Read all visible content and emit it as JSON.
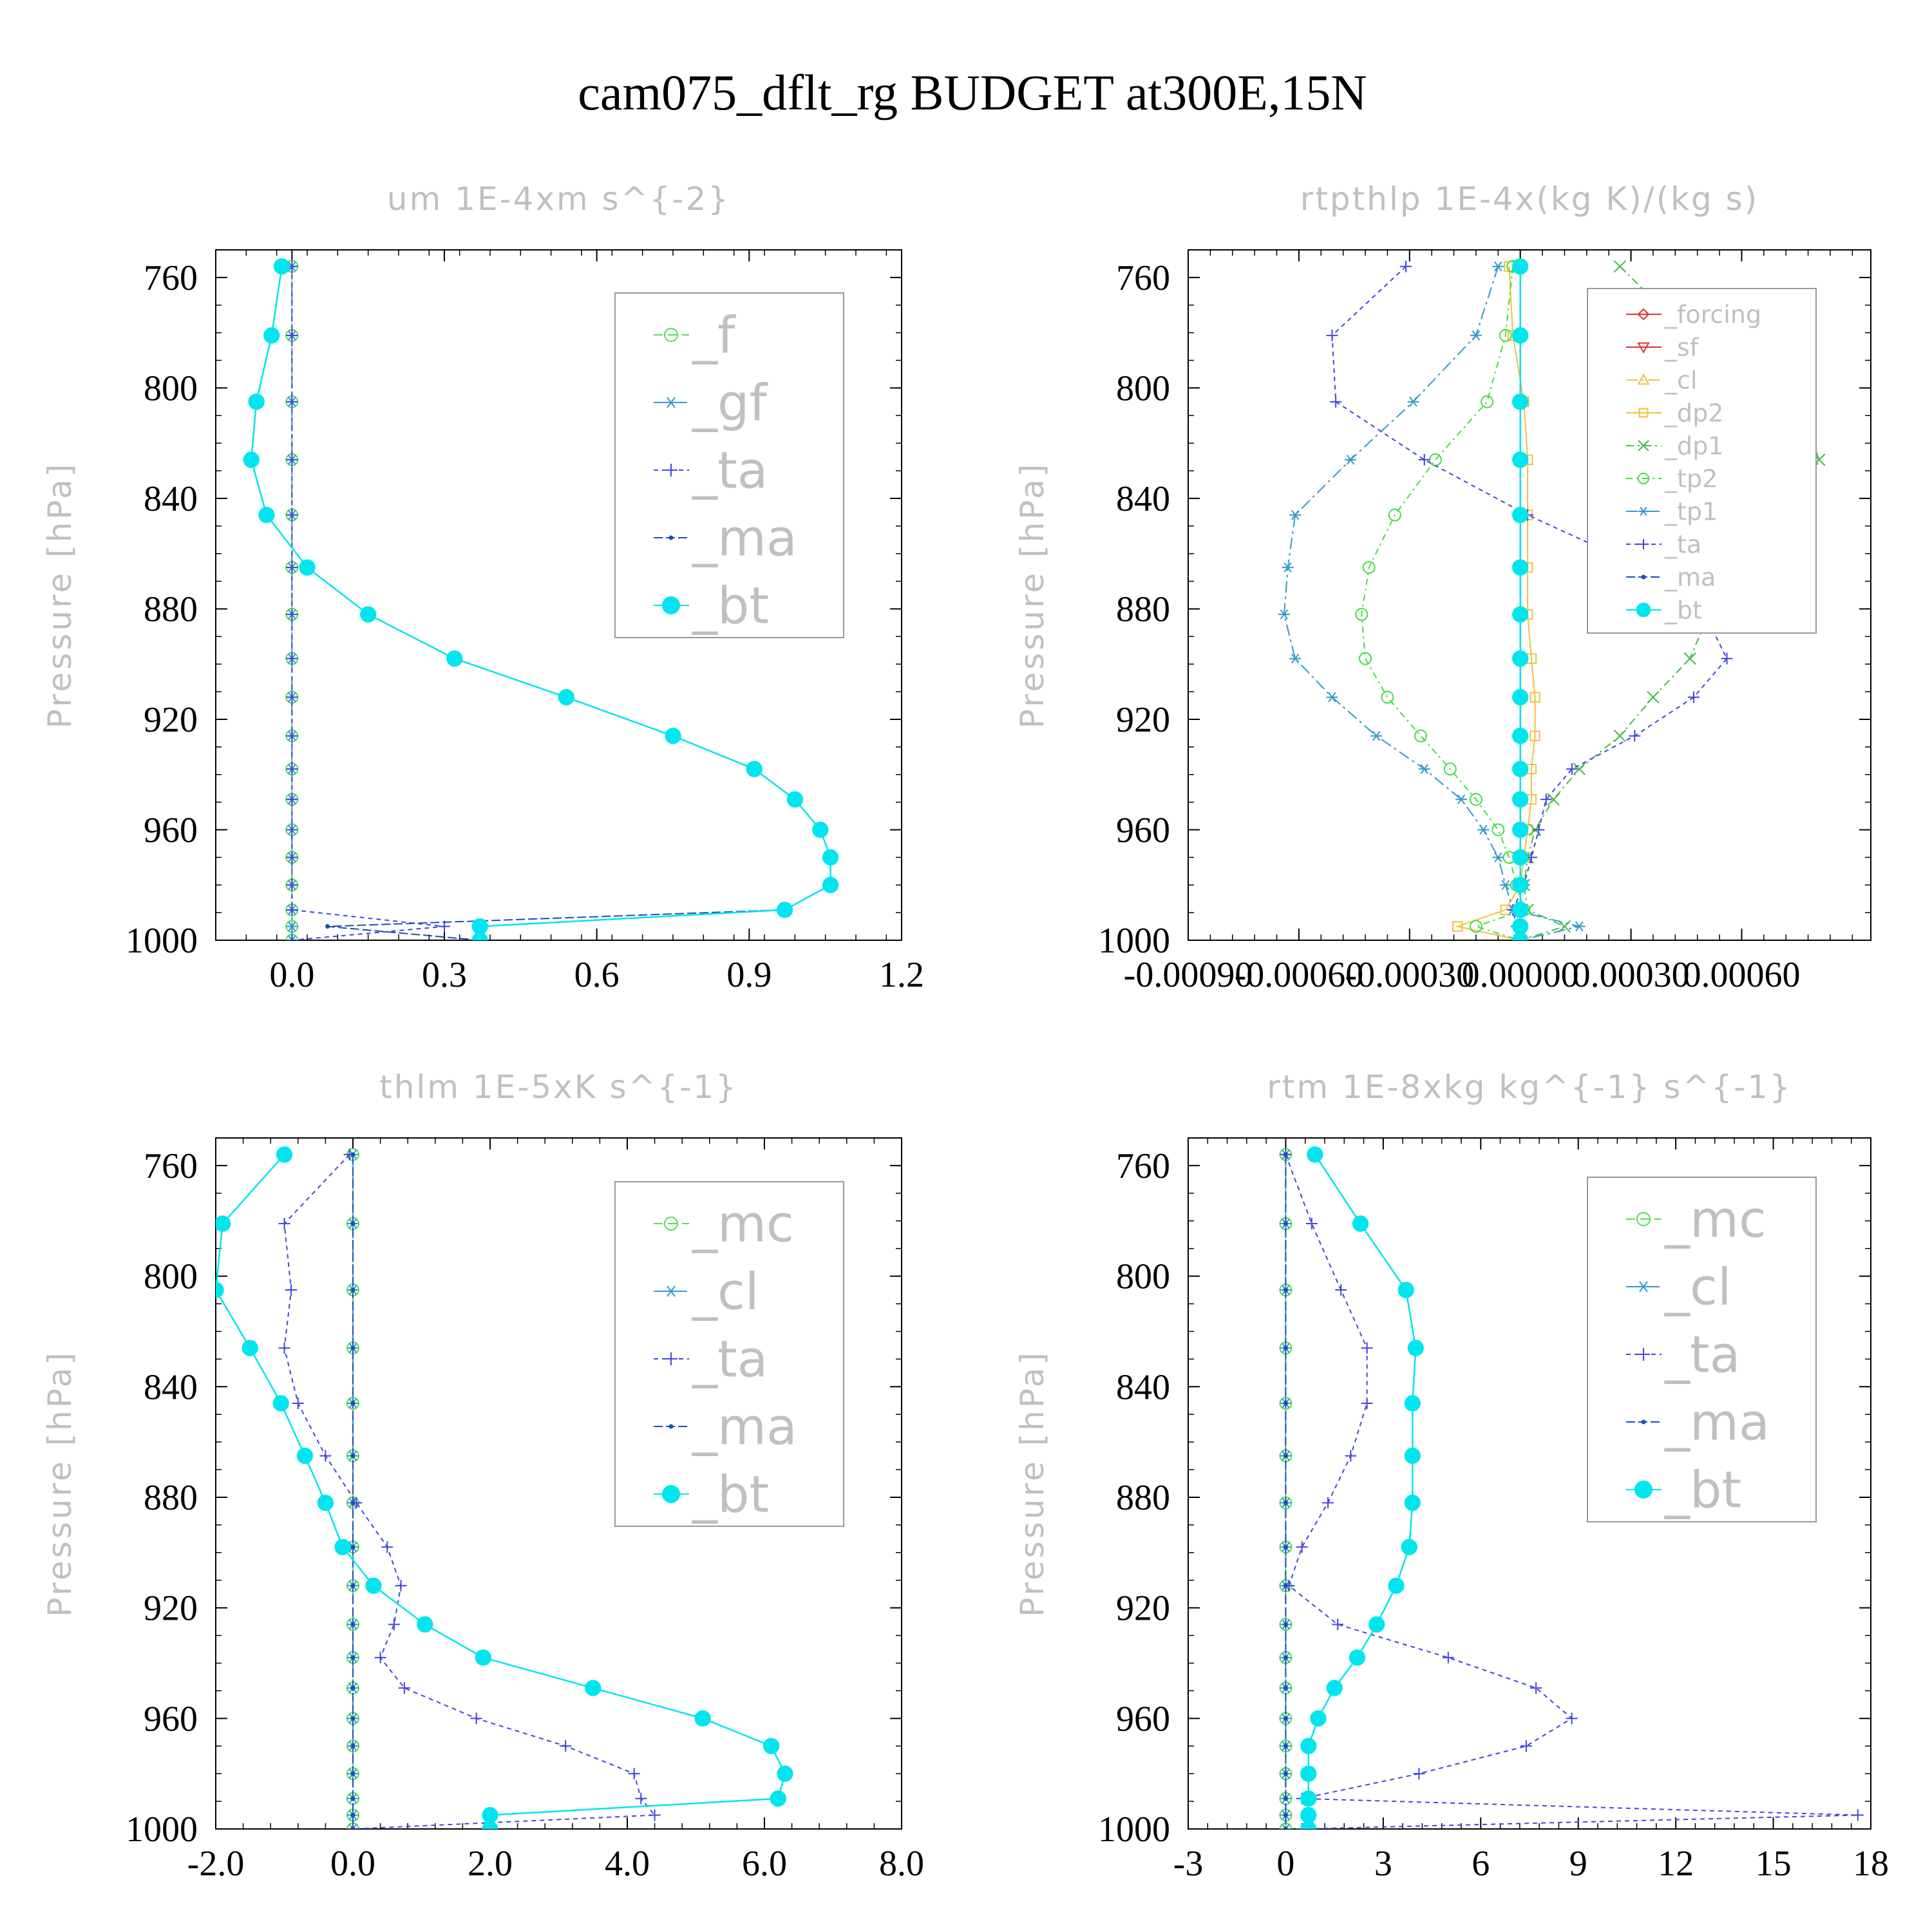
{
  "title": "cam075_dflt_rg  BUDGET at300E,15N",
  "chart_data": [
    {
      "type": "line",
      "title": "um   1E-4xm s^{-2}",
      "ylabel": "Pressure [hPa]",
      "xlim": [
        -0.15,
        1.2
      ],
      "ylim": [
        750,
        1000
      ],
      "y_inverted": true,
      "xticks": [
        "0.0",
        "0.3",
        "0.6",
        "0.9",
        "1.2"
      ],
      "yticks": [
        "760",
        "800",
        "840",
        "880",
        "920",
        "960",
        "1000"
      ],
      "legend_position": "top-right",
      "y": [
        756,
        781,
        805,
        826,
        846,
        865,
        882,
        898,
        912,
        926,
        938,
        949,
        960,
        970,
        980,
        989,
        995,
        1000
      ],
      "series": [
        {
          "name": "_f",
          "color": "#55dd55",
          "marker": "circle",
          "values": [
            0,
            0,
            0,
            0,
            0,
            0,
            0,
            0,
            0,
            0,
            0,
            0,
            0,
            0,
            0,
            0,
            0,
            0
          ]
        },
        {
          "name": "_gf",
          "color": "#3399cc",
          "marker": "asterisk",
          "values": [
            0,
            0,
            0,
            0,
            0,
            0,
            0,
            0,
            0,
            0,
            0,
            0,
            0,
            0,
            0,
            0,
            0,
            0
          ]
        },
        {
          "name": "_ta",
          "color": "#4444dd",
          "marker": "plus",
          "values": [
            0,
            0,
            0,
            0,
            0,
            0,
            0,
            0,
            0,
            0,
            0,
            0,
            0,
            0,
            0,
            0,
            0.3,
            0
          ]
        },
        {
          "name": "_ma",
          "color": "#1a4fb3",
          "marker": "dot",
          "values": [
            -0.02,
            -0.04,
            -0.07,
            -0.08,
            -0.05,
            0.03,
            0.15,
            0.32,
            0.54,
            0.75,
            0.91,
            0.99,
            1.04,
            1.06,
            1.06,
            0.97,
            0.07,
            0.37
          ]
        },
        {
          "name": "_bt",
          "color": "#00e5ee",
          "marker": "filled-circle",
          "values": [
            -0.02,
            -0.04,
            -0.07,
            -0.08,
            -0.05,
            0.03,
            0.15,
            0.32,
            0.54,
            0.75,
            0.91,
            0.99,
            1.04,
            1.06,
            1.06,
            0.97,
            0.37,
            0.37
          ]
        }
      ]
    },
    {
      "type": "line",
      "title": "rtpthlp   1E-4x(kg K)/(kg s)",
      "ylabel": "Pressure [hPa]",
      "xlim": [
        -0.0009,
        0.00095
      ],
      "ylim": [
        750,
        1000
      ],
      "y_inverted": true,
      "xticks": [
        "-0.00090",
        "-0.00060",
        "-0.00030",
        "0.00000",
        "0.00030",
        "0.00060"
      ],
      "yticks": [
        "760",
        "800",
        "840",
        "880",
        "920",
        "960",
        "1000"
      ],
      "legend_position": "top-right",
      "y": [
        756,
        781,
        805,
        826,
        846,
        865,
        882,
        898,
        912,
        926,
        938,
        949,
        960,
        970,
        980,
        989,
        995,
        1000
      ],
      "series": [
        {
          "name": "_forcing",
          "color": "#e03030",
          "marker": "diamond",
          "values": [
            0,
            0,
            0,
            0,
            0,
            0,
            0,
            0,
            0,
            0,
            0,
            0,
            0,
            0,
            0,
            0,
            0,
            0
          ]
        },
        {
          "name": "_sf",
          "color": "#e03030",
          "marker": "triangle-down",
          "values": [
            0,
            0,
            0,
            0,
            0,
            0,
            0,
            0,
            0,
            0,
            0,
            0,
            0,
            0,
            0,
            0,
            0,
            0
          ]
        },
        {
          "name": "_cl",
          "color": "#f0c040",
          "marker": "triangle",
          "values": [
            0,
            0,
            0,
            0,
            0,
            0,
            0,
            0,
            0,
            0,
            0,
            0,
            0,
            0,
            0,
            0,
            0,
            0
          ]
        },
        {
          "name": "_dp2",
          "color": "#f0c040",
          "marker": "square",
          "values": [
            -3e-05,
            -2e-05,
            1e-05,
            2e-05,
            2e-05,
            2e-05,
            2e-05,
            3e-05,
            4e-05,
            4e-05,
            3e-05,
            3e-05,
            2e-05,
            1e-05,
            0,
            -4e-05,
            -0.00017,
            0
          ]
        },
        {
          "name": "_dp1",
          "color": "#44bb44",
          "marker": "x",
          "values": [
            0.00027,
            0.00046,
            0.00075,
            0.00081,
            0.00075,
            0.00062,
            0.00051,
            0.00046,
            0.00036,
            0.00027,
            0.00016,
            9e-05,
            4e-05,
            2e-05,
            1e-05,
            2e-05,
            0.00012,
            0
          ]
        },
        {
          "name": "_tp2",
          "color": "#44dd44",
          "marker": "circle",
          "values": [
            -2e-05,
            -4e-05,
            -9e-05,
            -0.00023,
            -0.00034,
            -0.00041,
            -0.00043,
            -0.00042,
            -0.00036,
            -0.00027,
            -0.00019,
            -0.00012,
            -6e-05,
            -3e-05,
            -1e-05,
            1e-05,
            -0.00012,
            0
          ]
        },
        {
          "name": "_tp1",
          "color": "#3399cc",
          "marker": "asterisk",
          "values": [
            -6e-05,
            -0.00012,
            -0.00029,
            -0.00046,
            -0.00061,
            -0.00063,
            -0.00064,
            -0.00061,
            -0.00051,
            -0.00039,
            -0.00026,
            -0.00016,
            -0.0001,
            -6e-05,
            -4e-05,
            -2e-05,
            0.00016,
            0
          ]
        },
        {
          "name": "_ta",
          "color": "#4444dd",
          "marker": "plus",
          "values": [
            -0.00031,
            -0.00051,
            -0.0005,
            -0.00026,
            2e-05,
            0.00033,
            0.0005,
            0.00056,
            0.00047,
            0.00031,
            0.00014,
            7e-05,
            5e-05,
            3e-05,
            1e-05,
            -2e-05,
            -1e-05,
            0
          ]
        },
        {
          "name": "_ma",
          "color": "#1a4fb3",
          "marker": "dot",
          "values": [
            0,
            0,
            0,
            0,
            0,
            0,
            0,
            0,
            0,
            0,
            0,
            0,
            0,
            0,
            0,
            0,
            0,
            0
          ]
        },
        {
          "name": "_bt",
          "color": "#00e5ee",
          "marker": "filled-circle",
          "values": [
            0,
            0,
            0,
            0,
            0,
            0,
            0,
            0,
            0,
            0,
            0,
            0,
            0,
            0,
            0,
            0,
            0,
            0
          ]
        }
      ]
    },
    {
      "type": "line",
      "title": "thlm   1E-5xK s^{-1}",
      "ylabel": "Pressure [hPa]",
      "xlim": [
        -2.0,
        8.0
      ],
      "ylim": [
        750,
        1000
      ],
      "y_inverted": true,
      "xticks": [
        "-2.0",
        "0.0",
        "2.0",
        "4.0",
        "6.0",
        "8.0"
      ],
      "yticks": [
        "760",
        "800",
        "840",
        "880",
        "920",
        "960",
        "1000"
      ],
      "legend_position": "top-right",
      "y": [
        756,
        781,
        805,
        826,
        846,
        865,
        882,
        898,
        912,
        926,
        938,
        949,
        960,
        970,
        980,
        989,
        995,
        1000
      ],
      "series": [
        {
          "name": "_mc",
          "color": "#55dd55",
          "marker": "circle",
          "values": [
            0,
            0,
            0,
            0,
            0,
            0,
            0,
            0,
            0,
            0,
            0,
            0,
            0,
            0,
            0,
            0,
            0,
            0
          ]
        },
        {
          "name": "_cl",
          "color": "#3399cc",
          "marker": "asterisk",
          "values": [
            0,
            0,
            0,
            0,
            0,
            0,
            0,
            0,
            0,
            0,
            0,
            0,
            0,
            0,
            0,
            0,
            0,
            0
          ]
        },
        {
          "name": "_ta",
          "color": "#4444dd",
          "marker": "plus",
          "values": [
            -0.05,
            -1.0,
            -0.9,
            -1.0,
            -0.8,
            -0.4,
            0.05,
            0.5,
            0.7,
            0.6,
            0.4,
            0.75,
            1.8,
            3.1,
            4.1,
            4.2,
            4.4,
            0
          ]
        },
        {
          "name": "_ma",
          "color": "#1a4fb3",
          "marker": "dot",
          "values": [
            0,
            0,
            0,
            0,
            0,
            0,
            0,
            0,
            0,
            0,
            0,
            0,
            0,
            0,
            0,
            0,
            0,
            0
          ]
        },
        {
          "name": "_bt",
          "color": "#00e5ee",
          "marker": "filled-circle",
          "values": [
            -1.0,
            -1.9,
            -2.0,
            -1.5,
            -1.05,
            -0.7,
            -0.4,
            -0.15,
            0.3,
            1.05,
            1.9,
            3.5,
            5.1,
            6.1,
            6.3,
            6.2,
            2.0,
            2.0
          ]
        }
      ]
    },
    {
      "type": "line",
      "title": "rtm   1E-8xkg kg^{-1} s^{-1}",
      "ylabel": "Pressure [hPa]",
      "xlim": [
        -3,
        18
      ],
      "ylim": [
        750,
        1000
      ],
      "y_inverted": true,
      "xticks": [
        "-3",
        "0",
        "3",
        "6",
        "9",
        "12",
        "15",
        "18"
      ],
      "yticks": [
        "760",
        "800",
        "840",
        "880",
        "920",
        "960",
        "1000"
      ],
      "legend_position": "top-right",
      "y": [
        756,
        781,
        805,
        826,
        846,
        865,
        882,
        898,
        912,
        926,
        938,
        949,
        960,
        970,
        980,
        989,
        995,
        1000
      ],
      "series": [
        {
          "name": "_mc",
          "color": "#55dd55",
          "marker": "circle",
          "values": [
            0,
            0,
            0,
            0,
            0,
            0,
            0,
            0,
            0,
            0,
            0,
            0,
            0,
            0,
            0,
            0,
            0,
            0
          ]
        },
        {
          "name": "_cl",
          "color": "#3399cc",
          "marker": "asterisk",
          "values": [
            0,
            0,
            0,
            0,
            0,
            0,
            0,
            0,
            0,
            0,
            0,
            0,
            0,
            0,
            0,
            0,
            0,
            0
          ]
        },
        {
          "name": "_ta",
          "color": "#4444dd",
          "marker": "plus",
          "values": [
            0,
            0.8,
            1.7,
            2.5,
            2.5,
            2.0,
            1.3,
            0.5,
            0.1,
            1.6,
            5.0,
            7.7,
            8.8,
            7.4,
            4.1,
            0.5,
            17.6,
            0.5
          ]
        },
        {
          "name": "_ma",
          "color": "#1a4fb3",
          "marker": "dot",
          "values": [
            0,
            0,
            0,
            0,
            0,
            0,
            0,
            0,
            0,
            0,
            0,
            0,
            0,
            0,
            0,
            0,
            0,
            0
          ]
        },
        {
          "name": "_bt",
          "color": "#00e5ee",
          "marker": "filled-circle",
          "values": [
            0.9,
            2.3,
            3.7,
            4.0,
            3.9,
            3.9,
            3.9,
            3.8,
            3.4,
            2.8,
            2.2,
            1.5,
            1.0,
            0.7,
            0.7,
            0.7,
            0.7,
            0.7
          ]
        }
      ]
    }
  ]
}
